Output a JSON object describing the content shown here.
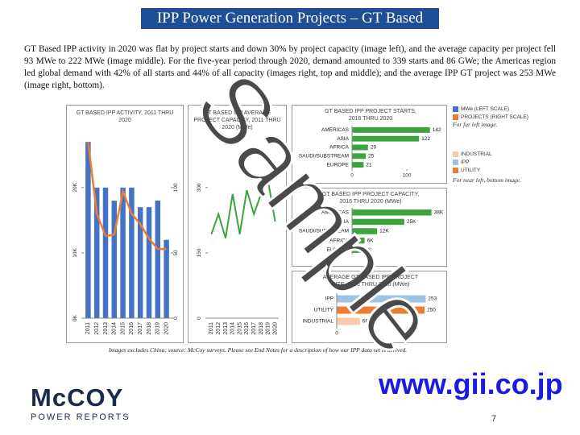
{
  "header": {
    "title": "IPP Power Generation Projects – GT Based"
  },
  "body": "GT Based IPP activity in 2020 was flat by project starts and down 30% by project capacity (image left), and the average capacity per project fell 93 MWe to 222 MWe (image middle). For the five-year period through 2020, demand amounted to 339 starts and 86 GWe; the Americas region led global demand with 42% of all starts and 44% of all capacity (images right, top and middle); and the average IPP GT project was 253 MWe (image right, bottom).",
  "chart_data": [
    {
      "type": "combo",
      "title": "GT BASED IPP ACTIVITY, 2011 THRU 2020",
      "categories": [
        "2011",
        "2012",
        "2013",
        "2014",
        "2015",
        "2016",
        "2017",
        "2018",
        "2019",
        "2020"
      ],
      "series": [
        {
          "name": "MWe (LEFT SCALE)",
          "color": "#4472c4",
          "values": [
            27000,
            20000,
            20000,
            18000,
            20000,
            20000,
            17000,
            17000,
            18000,
            12000
          ]
        },
        {
          "name": "PROJECTS (RIGHT SCALE)",
          "color": "#ed7d31",
          "axis": "y2",
          "values": [
            135,
            80,
            63,
            64,
            97,
            80,
            72,
            61,
            53,
            53
          ]
        }
      ],
      "ylim": [
        0,
        28000
      ],
      "yticks": [
        {
          "value": 0,
          "label": "0K"
        },
        {
          "value": 10000,
          "label": "10K"
        },
        {
          "value": 20000,
          "label": "20K"
        }
      ],
      "y2lim": [
        0,
        140
      ],
      "y2ticks": [
        0,
        50,
        100
      ]
    },
    {
      "type": "line",
      "title": "GT BASED IPP AVERAGE PROJECT CAPACITY, 2011 THRU 2020 (MWe)",
      "categories": [
        "2011",
        "2012",
        "2013",
        "2014",
        "2015",
        "2016",
        "2017",
        "2018",
        "2019",
        "2020"
      ],
      "color": "#3ba53b",
      "values": [
        193,
        239,
        184,
        285,
        193,
        294,
        239,
        285,
        315,
        222
      ],
      "ylim": [
        0,
        420
      ],
      "yticks": [
        0,
        150,
        300
      ]
    },
    {
      "type": "hbar",
      "title": "GT BASED IPP PROJECT STARTS, 2016 THRU 2020",
      "categories": [
        "AMERICAS",
        "ASIA",
        "AFRICA",
        "SAUDI/SUBSTREAM",
        "EUROPE"
      ],
      "color": "#3ba53b",
      "values": [
        142,
        122,
        29,
        25,
        21
      ],
      "xlim": [
        0,
        160
      ],
      "xticks": [
        0,
        100
      ]
    },
    {
      "type": "hbar",
      "title": "GT BASED IPP PROJECT CAPACITY, 2016 THRU 2020 (MWe)",
      "categories": [
        "AMERICAS",
        "ASIA",
        "SAUDI/SUBSTREAM",
        "AFRICA",
        "EUROPE"
      ],
      "color": "#3ba53b",
      "values": [
        38000,
        25000,
        12000,
        6000,
        5000
      ],
      "value_labels": [
        "38K",
        "25K",
        "12K",
        "6K",
        "5K"
      ],
      "xlim": [
        0,
        42000
      ],
      "xticks": []
    },
    {
      "type": "hbar",
      "title": "AVERAGE GT BASED IPP PROJECT SIZE, 2016 THRU 2020 (MWe)",
      "categories": [
        "IPP",
        "UTILITY",
        "INDUSTRIAL"
      ],
      "colors": [
        "#9dc3e6",
        "#ed7d31",
        "#f8cbad"
      ],
      "values": [
        253,
        250,
        66
      ],
      "xlim": [
        0,
        275
      ],
      "xticks": [
        0,
        200
      ]
    }
  ],
  "legends": [
    {
      "note": "For far left image."
    },
    {
      "items": [
        {
          "label": "INDUSTRIAL",
          "color": "#f8cbad"
        },
        {
          "label": "IPP",
          "color": "#9dc3e6"
        },
        {
          "label": "UTILITY",
          "color": "#ed7d31"
        }
      ],
      "note": "For near left, bottom image."
    }
  ],
  "caption": "Images excludes China; source: McCoy surveys. Please see End Notes for a description of how our IPP data set is derived.",
  "footer": {
    "logo": "McCOY",
    "tagline": "POWER REPORTS",
    "url": "www.gii.co.jp",
    "page": "7"
  },
  "watermark": "Sample"
}
